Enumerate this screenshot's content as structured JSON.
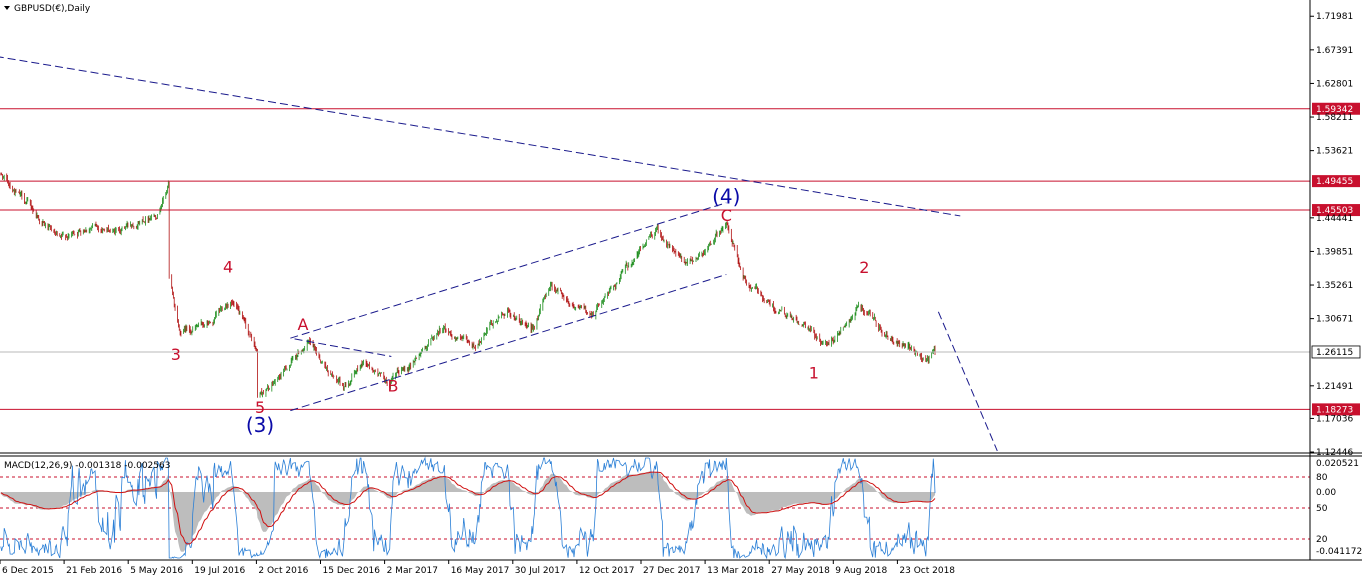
{
  "symbol_title": "GBPUSD(€),Daily",
  "macd_title": "MACD(12,26,9) -0.001318 -0.002563",
  "colors": {
    "bull": "#1a8c1a",
    "bear": "#b01010",
    "level_line": "#c8102e",
    "trend_line": "#1a1a8c",
    "price_tag": "#c8102e",
    "current_tag": "#ffffff",
    "macd_hist": "#bdbdbd",
    "macd_signal": "#d01010",
    "osc_line": "#2a7fd6",
    "osc_level": "#c8102e"
  },
  "chart_data": {
    "type": "candlestick",
    "symbol": "GBPUSD",
    "timeframe": "Daily",
    "ylim": [
      1.1245,
      1.742
    ],
    "x_tick_labels": [
      "6 Dec 2015",
      "21 Feb 2016",
      "5 May 2016",
      "19 Jul 2016",
      "2 Oct 2016",
      "15 Dec 2016",
      "2 Mar 2017",
      "16 May 2017",
      "30 Jul 2017",
      "12 Oct 2017",
      "27 Dec 2017",
      "13 Mar 2018",
      "27 May 2018",
      "9 Aug 2018",
      "23 Oct 2018"
    ],
    "y_tick_labels": [
      "1.71981",
      "1.67391",
      "1.62801",
      "1.58211",
      "1.53621",
      "1.44441",
      "1.39851",
      "1.35261",
      "1.30671",
      "1.21491",
      "1.17036",
      "1.12446"
    ],
    "price_path": [
      {
        "date": "2015-12-01",
        "price": 1.51
      },
      {
        "date": "2016-01-10",
        "price": 1.46
      },
      {
        "date": "2016-02-15",
        "price": 1.41
      },
      {
        "date": "2016-03-20",
        "price": 1.435
      },
      {
        "date": "2016-04-20",
        "price": 1.425
      },
      {
        "date": "2016-06-10",
        "price": 1.455
      },
      {
        "date": "2016-06-23",
        "price": 1.49
      },
      {
        "date": "2016-06-24",
        "price": 1.36
      },
      {
        "date": "2016-07-06",
        "price": 1.29
      },
      {
        "date": "2016-08-15",
        "price": 1.3
      },
      {
        "date": "2016-09-05",
        "price": 1.335
      },
      {
        "date": "2016-10-06",
        "price": 1.26
      },
      {
        "date": "2016-10-07",
        "price": 1.2
      },
      {
        "date": "2016-10-25",
        "price": 1.215
      },
      {
        "date": "2016-12-05",
        "price": 1.275
      },
      {
        "date": "2017-01-16",
        "price": 1.21
      },
      {
        "date": "2017-02-10",
        "price": 1.25
      },
      {
        "date": "2017-03-13",
        "price": 1.215
      },
      {
        "date": "2017-05-15",
        "price": 1.295
      },
      {
        "date": "2017-06-20",
        "price": 1.265
      },
      {
        "date": "2017-08-01",
        "price": 1.32
      },
      {
        "date": "2017-08-28",
        "price": 1.285
      },
      {
        "date": "2017-09-20",
        "price": 1.355
      },
      {
        "date": "2017-11-05",
        "price": 1.31
      },
      {
        "date": "2018-01-25",
        "price": 1.43
      },
      {
        "date": "2018-03-01",
        "price": 1.375
      },
      {
        "date": "2018-04-17",
        "price": 1.435
      },
      {
        "date": "2018-05-10",
        "price": 1.355
      },
      {
        "date": "2018-06-28",
        "price": 1.31
      },
      {
        "date": "2018-08-15",
        "price": 1.27
      },
      {
        "date": "2018-09-20",
        "price": 1.325
      },
      {
        "date": "2018-10-30",
        "price": 1.275
      },
      {
        "date": "2018-12-12",
        "price": 1.25
      },
      {
        "date": "2018-12-21",
        "price": 1.2611
      }
    ],
    "horizontal_levels": [
      {
        "label": "1.59342",
        "price": 1.59342
      },
      {
        "label": "1.49455",
        "price": 1.49455
      },
      {
        "label": "1.45503",
        "price": 1.45503
      },
      {
        "label": "1.18273",
        "price": 1.18273
      }
    ],
    "current_price": {
      "label": "1.26115",
      "price": 1.26115
    },
    "trend_lines": [
      {
        "name": "long-term-downtrend",
        "style": "dashed",
        "from": {
          "date": "2015-12-01",
          "price": 1.665
        },
        "to": {
          "date": "2019-01-20",
          "price": 1.447
        }
      },
      {
        "name": "channel-upper",
        "style": "dashed",
        "from": {
          "date": "2016-11-15",
          "price": 1.28
        },
        "to": {
          "date": "2018-04-17",
          "price": 1.465
        }
      },
      {
        "name": "channel-lower",
        "style": "dashed",
        "from": {
          "date": "2016-11-15",
          "price": 1.181
        },
        "to": {
          "date": "2018-04-17",
          "price": 1.367
        }
      },
      {
        "name": "abc-connector",
        "style": "dashed",
        "from": {
          "date": "2016-11-20",
          "price": 1.279
        },
        "to": {
          "date": "2017-03-15",
          "price": 1.255
        }
      },
      {
        "name": "projection",
        "style": "dashed",
        "from": {
          "date": "2018-12-25",
          "price": 1.316
        },
        "to": {
          "date": "2019-03-05",
          "price": 1.126
        }
      }
    ],
    "wave_labels": [
      {
        "text": "3",
        "color": "red",
        "date": "2016-07-02",
        "price": 1.25
      },
      {
        "text": "4",
        "color": "red",
        "date": "2016-09-02",
        "price": 1.37
      },
      {
        "text": "5",
        "color": "red",
        "date": "2016-10-10",
        "price": 1.178
      },
      {
        "text": "(3)",
        "color": "blue",
        "date": "2016-10-10",
        "price": 1.152
      },
      {
        "text": "A",
        "color": "red",
        "date": "2016-11-30",
        "price": 1.291
      },
      {
        "text": "B",
        "color": "red",
        "date": "2017-03-17",
        "price": 1.207
      },
      {
        "text": "C",
        "color": "red",
        "date": "2018-04-17",
        "price": 1.44
      },
      {
        "text": "(4)",
        "color": "blue",
        "date": "2018-04-17",
        "price": 1.464
      },
      {
        "text": "1",
        "color": "red",
        "date": "2018-07-30",
        "price": 1.225
      },
      {
        "text": "2",
        "color": "red",
        "date": "2018-09-28",
        "price": 1.369
      }
    ],
    "indicators": [
      {
        "name": "MACD(12,26,9)",
        "macd": -0.001318,
        "signal": -0.002563,
        "scale_labels": [
          "0.020521",
          "0.00",
          "-0.041172"
        ]
      },
      {
        "name": "oscillator",
        "levels": [
          80,
          50,
          20
        ],
        "scale_labels": [
          "80",
          "50",
          "20"
        ]
      }
    ]
  }
}
